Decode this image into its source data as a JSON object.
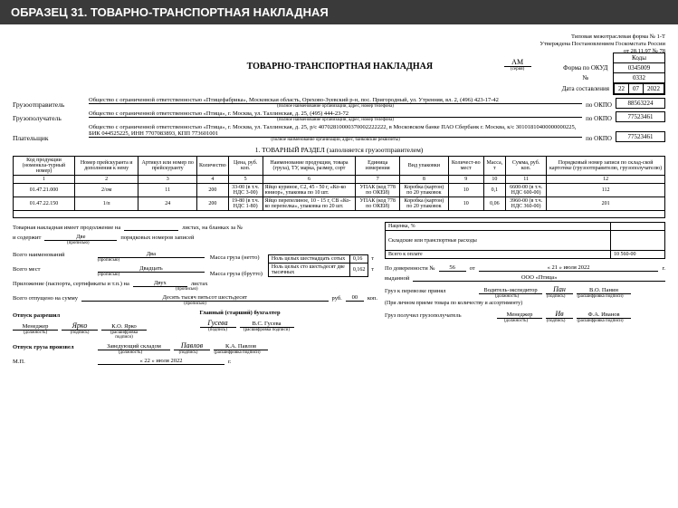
{
  "header": "ОБРАЗЕЦ 31. ТОВАРНО-ТРАНСПОРТНАЯ НАКЛАДНАЯ",
  "topRight": {
    "l1": "Типовая межотраслевая форма № 1-Т",
    "l2": "Утверждена Постановлением Госкомстата России",
    "l3": "от 28.11.97 № 78"
  },
  "title": "ТОВАРНО-ТРАНСПОРТНАЯ НАКЛАДНАЯ",
  "series": "AM",
  "seriesSub": "(серия)",
  "codesHeader": "Коды",
  "okudLabel": "Форма по ОКУД",
  "okud": "0345009",
  "numLabel": "№",
  "num": "0332",
  "dateLabel": "Дата составления",
  "dateD": "22",
  "dateM": "07",
  "dateY": "2022",
  "okpoLabel": "по ОКПО",
  "parties": {
    "sender": {
      "label": "Грузоотправитель",
      "val": "Общество с ограниченной ответственностью «Птицефабрика», Московская область, Орехово-Зуевский р-н, пос. Пригородный, ул. Утренняя, вл. 2, (496) 423-17-42",
      "sub": "(полное наименование организации, адрес, номер телефона)",
      "okpo": "88563224"
    },
    "recipient": {
      "label": "Грузополучатель",
      "val": "Общество с ограниченной ответственностью «Птица», г. Москва, ул. Таллинская, д. 25, (495) 444-23-72",
      "sub": "(полное наименование организации, адрес, номер телефона)",
      "okpo": "77523461"
    },
    "payer": {
      "label": "Плательщик",
      "val": "Общество с ограниченной ответственностью «Птица», г. Москва, ул. Таллинская, д. 25, р/с 40702810000370002222222, в Московском банке ПАО Сбербанк г. Москва, к/с 30101810400000000225, БИК 044525225, ИНН 7707083893, КПП 773601001",
      "sub": "(полное наименование организации, адрес, банковские реквизиты)",
      "okpo": "77523461"
    }
  },
  "section1": "1. ТОВАРНЫЙ РАЗДЕЛ (заполняется грузоотправителем)",
  "cols": [
    "Код продукции (номенкла-турный номер)",
    "Номер прейскуранта и дополнения к нему",
    "Артикул или номер по прейскуранту",
    "Количество",
    "Цена, руб. коп.",
    "Наименование продукции, товара (груза), ТУ, марка, размер, сорт",
    "Единица измерения",
    "Вид упаковки",
    "Количест-во мест",
    "Масса, т",
    "Сумма, руб. коп.",
    "Порядковый номер записи по склад-ской картотеке (грузоотправителю, грузополучателю)"
  ],
  "nums": [
    "1",
    "2",
    "3",
    "4",
    "5",
    "6",
    "7",
    "8",
    "9",
    "10",
    "11",
    "12"
  ],
  "rows": [
    {
      "c1": "01.47.21.000",
      "c2": "2/ом",
      "c3": "11",
      "c4": "200",
      "c5": "33-00 (в т.ч. НДС 3-00)",
      "c6": "Яйцо куриное, С2, 45 - 50 г, «Ко-ко юниор», упаковка по 10 шт.",
      "c7": "УПАК (код 778 по ОКЕИ)",
      "c8": "Коробка (картон) по 20 упаковок",
      "c9": "10",
      "c10": "0,1",
      "c11": "6600-00 (в т.ч. НДС 600-00)",
      "c12": "112"
    },
    {
      "c1": "01.47.22.150",
      "c2": "1/п",
      "c3": "24",
      "c4": "200",
      "c5": "19-80 (в т.ч. НДС 1-80)",
      "c6": "Яйцо перепелиное, 10 - 15 г, СВ «Ко-ко перепелка», упаковка по 20 шт.",
      "c7": "УПАК (код 778 по ОКЕИ)",
      "c8": "Коробка (картон) по 20 упаковок",
      "c9": "10",
      "c10": "0,06",
      "c11": "3960-00 (в т.ч. НДС 360-00)",
      "c12": "201"
    }
  ],
  "footer": {
    "contLine1a": "Товарная накладная имеет продолжение на",
    "contLine1b": "листах, на бланках за №",
    "contLine2a": "и содержит",
    "contLine2b": "Две",
    "contLine2c": "порядковых номеров записей",
    "propis": "(прописью)",
    "vsegoNaim": "Всего наименований",
    "vsegoNaimVal": "Два",
    "vsegoMest": "Всего мест",
    "vsegoMestVal": "Двадцать",
    "massNetto": "Масса груза (нетто)",
    "massNettoWords": "Ноль целых шестнадцать сотых",
    "massNettoVal": "0,16",
    "massBrutto": "Масса груза (брутто)",
    "massBruttoWords": "Ноль целых сто шестьдесят две тысячных",
    "massBruttoVal": "0,162",
    "t": "т",
    "nacenka": "Наценка, %",
    "sklad": "Складские или транспортные расходы",
    "vsegoOplate": "Всего к оплате",
    "vsegoOplateVal": "10 560-00",
    "prilozh": "Приложение (паспорта, сертификаты и т.п.) на",
    "prilozhVal": "Двух",
    "listah": "листах",
    "otpuscheno": "Всего отпущено на сумму",
    "otpuschenoVal": "Десять тысяч пятьсот шестьдесят",
    "rub": "руб.",
    "rubVal": "00",
    "kop": "коп.",
    "doverennost": "По доверенности №",
    "doverNum": "56",
    "ot": "от",
    "doverDate": "« 21 »     июля     2022",
    "g": "г.",
    "vydannoj": "выданной",
    "vydannojVal": "ООО «Птица»",
    "gruzPrinal": "Груз к перевозке принял",
    "gruzPrinalPos": "Водитель-экспедитор",
    "gruzPrinalName": "В.О. Панин",
    "priLichnom": "(При личном приеме товара по количеству и ассортименту)",
    "gruzPoluchil": "Груз получил грузополучатель",
    "gruzPoluchilPos": "Менеджер",
    "gruzPoluchilName": "Ф.А. Иванов",
    "otpuskRazr": "Отпуск разрешил",
    "otpuskRazrPos": "Менеджер",
    "otpuskRazrName": "К.О. Ярко",
    "glavbuh": "Главный (старший) бухгалтер",
    "glavbuhName": "В.С. Гусева",
    "otpuskProizv": "Отпуск груза произвел",
    "otpuskProizvPos": "Заведующий складом",
    "otpuskProizvName": "К.А. Павлов",
    "mp": "М.П.",
    "mpDate": "« 22 »     июля     2022",
    "dolzhnost": "(должность)",
    "podpis": "(подпись)",
    "rasshifr": "(расшифровка подписи)"
  }
}
